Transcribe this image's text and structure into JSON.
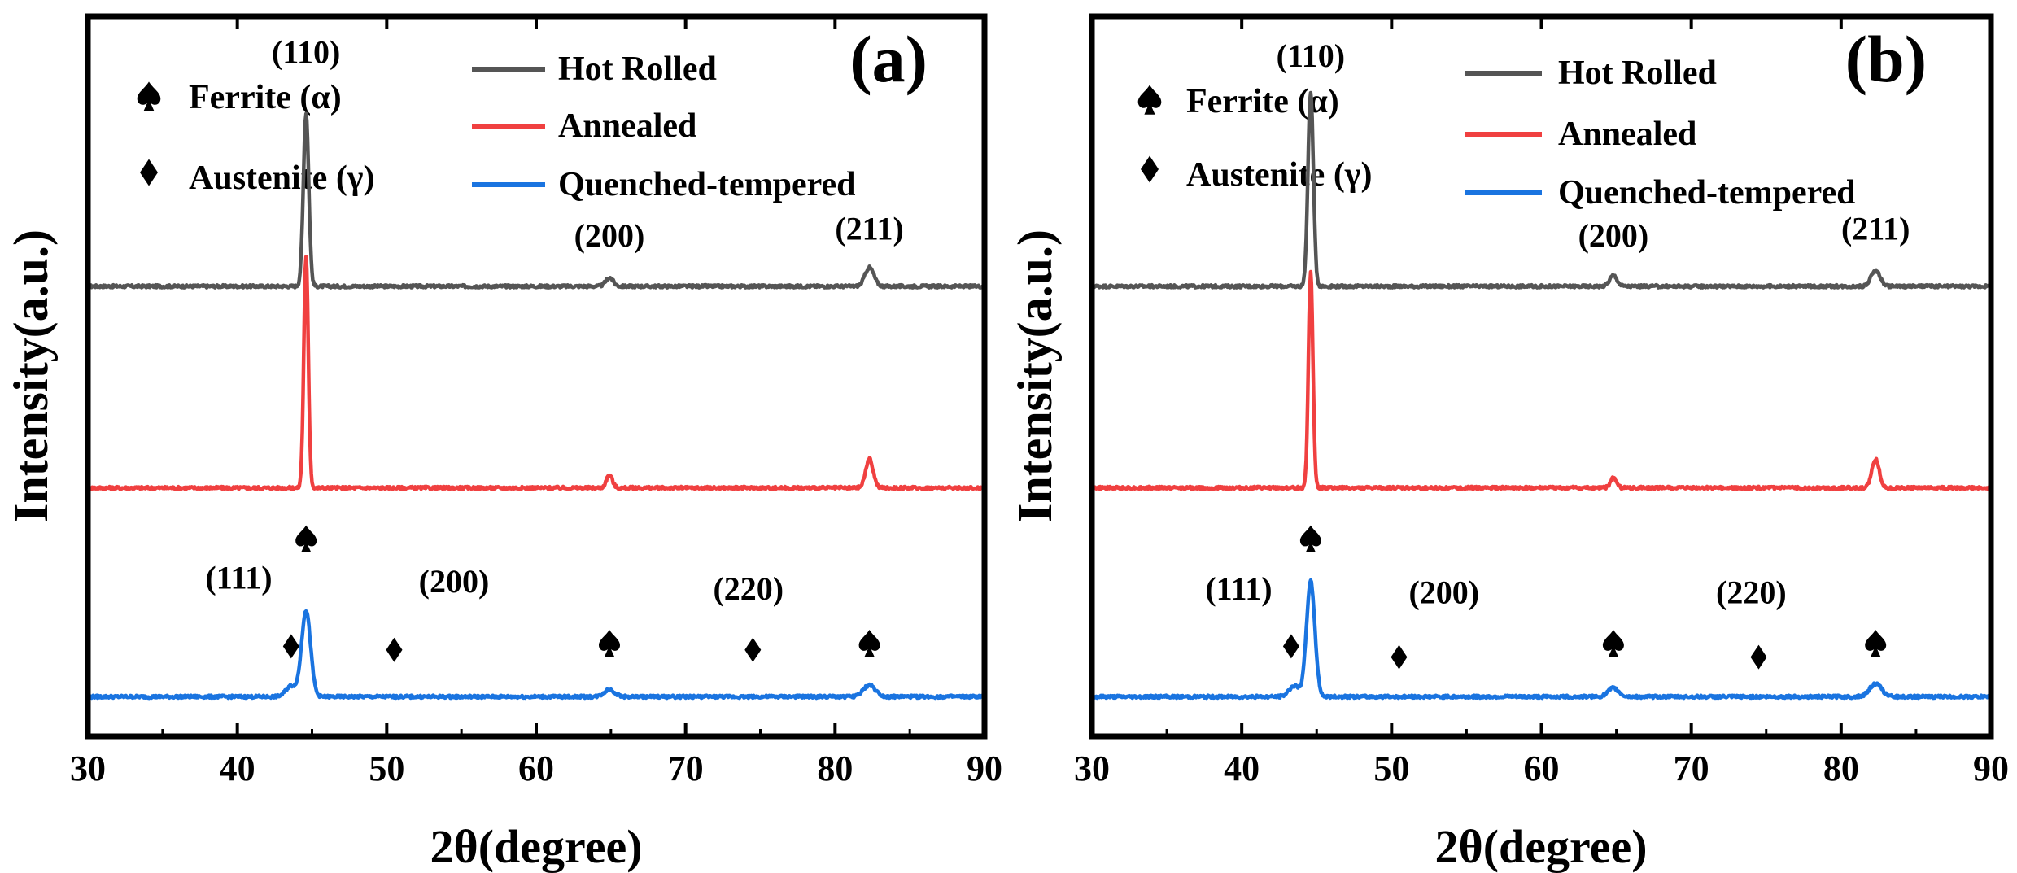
{
  "colors": {
    "hot_rolled": "#555555",
    "annealed": "#f04040",
    "quenched_tempered": "#1a74e0",
    "axis": "#000000"
  },
  "chart_data": [
    {
      "type": "line",
      "panel_label": "(a)",
      "xlabel": "2θ(degree)",
      "ylabel": "Intensity(a.u.)",
      "xlim": [
        30,
        90
      ],
      "xticks": [
        30,
        40,
        50,
        60,
        70,
        80,
        90
      ],
      "yticks_shown": false,
      "legend": {
        "position": "top",
        "phases": [
          {
            "symbol": "spade-icon",
            "label": "Ferrite (α)"
          },
          {
            "symbol": "diamond-icon",
            "label": "Austenite (γ)"
          }
        ],
        "series": [
          "Hot Rolled",
          "Annealed",
          "Quenched-tempered"
        ]
      },
      "series": [
        {
          "name": "Hot Rolled",
          "baseline": 0.625,
          "peaks": [
            {
              "x": 44.6,
              "h": 0.24,
              "w": 0.18
            },
            {
              "x": 64.9,
              "h": 0.012,
              "w": 0.25
            },
            {
              "x": 82.3,
              "h": 0.026,
              "w": 0.3
            }
          ]
        },
        {
          "name": "Annealed",
          "baseline": 0.345,
          "peaks": [
            {
              "x": 44.6,
              "h": 0.32,
              "w": 0.15
            },
            {
              "x": 64.9,
              "h": 0.018,
              "w": 0.2
            },
            {
              "x": 82.3,
              "h": 0.04,
              "w": 0.25
            }
          ]
        },
        {
          "name": "Quenched-tempered",
          "baseline": 0.055,
          "peaks": [
            {
              "x": 43.6,
              "h": 0.015,
              "w": 0.35
            },
            {
              "x": 44.6,
              "h": 0.12,
              "w": 0.3
            },
            {
              "x": 64.9,
              "h": 0.01,
              "w": 0.35
            },
            {
              "x": 82.3,
              "h": 0.016,
              "w": 0.4
            }
          ]
        }
      ],
      "annotations": [
        {
          "text": "(110)",
          "x": 44.6,
          "y": 0.935
        },
        {
          "text": "(200)",
          "x": 64.9,
          "y": 0.68
        },
        {
          "text": "(211)",
          "x": 82.3,
          "y": 0.69
        },
        {
          "text": "(111)",
          "x": 40.1,
          "y": 0.205
        },
        {
          "text": "(200)",
          "x": 54.5,
          "y": 0.2
        },
        {
          "text": "(220)",
          "x": 74.2,
          "y": 0.19
        }
      ],
      "markers": [
        {
          "symbol": "spade",
          "x": 44.6,
          "y": 0.275
        },
        {
          "symbol": "diamond",
          "x": 43.6,
          "y": 0.125
        },
        {
          "symbol": "diamond",
          "x": 50.5,
          "y": 0.12
        },
        {
          "symbol": "spade",
          "x": 64.9,
          "y": 0.13
        },
        {
          "symbol": "diamond",
          "x": 74.5,
          "y": 0.12
        },
        {
          "symbol": "spade",
          "x": 82.3,
          "y": 0.13
        }
      ]
    },
    {
      "type": "line",
      "panel_label": "(b)",
      "xlabel": "2θ(degree)",
      "ylabel": "Intensity(a.u.)",
      "xlim": [
        30,
        90
      ],
      "xticks": [
        30,
        40,
        50,
        60,
        70,
        80,
        90
      ],
      "yticks_shown": false,
      "legend": {
        "position": "top",
        "phases": [
          {
            "symbol": "spade-icon",
            "label": "Ferrite (α)"
          },
          {
            "symbol": "diamond-icon",
            "label": "Austenite (γ)"
          }
        ],
        "series": [
          "Hot Rolled",
          "Annealed",
          "Quenched-tempered"
        ]
      },
      "series": [
        {
          "name": "Hot Rolled",
          "baseline": 0.625,
          "peaks": [
            {
              "x": 44.6,
              "h": 0.27,
              "w": 0.18
            },
            {
              "x": 64.8,
              "h": 0.015,
              "w": 0.25
            },
            {
              "x": 82.3,
              "h": 0.022,
              "w": 0.3
            }
          ]
        },
        {
          "name": "Annealed",
          "baseline": 0.345,
          "peaks": [
            {
              "x": 44.6,
              "h": 0.3,
              "w": 0.15
            },
            {
              "x": 64.8,
              "h": 0.014,
              "w": 0.2
            },
            {
              "x": 82.3,
              "h": 0.04,
              "w": 0.25
            }
          ]
        },
        {
          "name": "Quenched-tempered",
          "baseline": 0.055,
          "peaks": [
            {
              "x": 43.5,
              "h": 0.015,
              "w": 0.35
            },
            {
              "x": 44.6,
              "h": 0.16,
              "w": 0.28
            },
            {
              "x": 64.8,
              "h": 0.012,
              "w": 0.35
            },
            {
              "x": 82.3,
              "h": 0.018,
              "w": 0.4
            }
          ]
        }
      ],
      "annotations": [
        {
          "text": "(110)",
          "x": 44.6,
          "y": 0.93
        },
        {
          "text": "(200)",
          "x": 64.8,
          "y": 0.68
        },
        {
          "text": "(211)",
          "x": 82.3,
          "y": 0.69
        },
        {
          "text": "(111)",
          "x": 39.8,
          "y": 0.19
        },
        {
          "text": "(200)",
          "x": 53.5,
          "y": 0.185
        },
        {
          "text": "(220)",
          "x": 74.0,
          "y": 0.185
        }
      ],
      "markers": [
        {
          "symbol": "spade",
          "x": 44.6,
          "y": 0.275
        },
        {
          "symbol": "diamond",
          "x": 43.3,
          "y": 0.125
        },
        {
          "symbol": "diamond",
          "x": 50.5,
          "y": 0.11
        },
        {
          "symbol": "spade",
          "x": 64.8,
          "y": 0.13
        },
        {
          "symbol": "diamond",
          "x": 74.5,
          "y": 0.11
        },
        {
          "symbol": "spade",
          "x": 82.3,
          "y": 0.13
        }
      ]
    }
  ]
}
